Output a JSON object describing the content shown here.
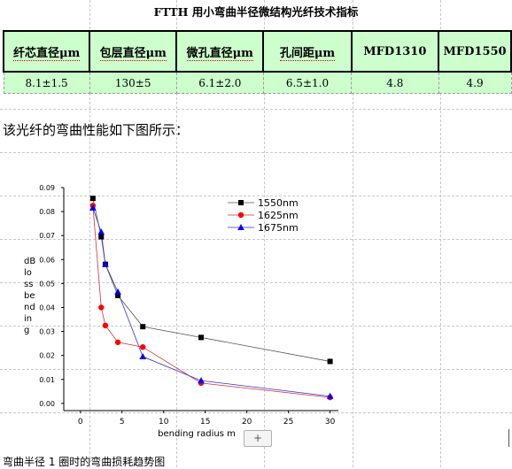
{
  "document": {
    "title": "FTTH 用小弯曲半径微结构光纤技术指标",
    "table": {
      "headers": [
        "纤芯直径μm",
        "包层直径μm",
        "微孔直径μm",
        "孔间距μm",
        "MFD1310",
        "MFD1550"
      ],
      "row": [
        "8.1±1.5",
        "130±5",
        "6.1±2.0",
        "6.5±1.0",
        "4.8",
        "4.9"
      ]
    },
    "intro_text": "该光纤的弯曲性能如下图所示：",
    "figure_caption": "弯曲半径 1 圈时的弯曲损耗趋势图",
    "add_button_label": "+"
  },
  "colors": {
    "table_fill": "#ccffcc",
    "series_1550": "#000000",
    "series_1625": "#ff0000",
    "series_1675": "#0000ff",
    "line_1550": "#555555",
    "line_1625": "#cc3333",
    "line_1675": "#3333cc"
  },
  "chart_data": {
    "type": "line",
    "xlabel": "bending radius m",
    "ylabel": "dB loss bending",
    "xlim": [
      -2,
      31
    ],
    "ylim": [
      -0.003,
      0.09
    ],
    "x_ticks": [
      0,
      5,
      10,
      15,
      20,
      25,
      30
    ],
    "y_ticks": [
      0.0,
      0.01,
      0.02,
      0.03,
      0.04,
      0.05,
      0.06,
      0.07,
      0.08,
      0.09
    ],
    "legend_position": "top-right",
    "grid": false,
    "series": [
      {
        "name": "1550nm",
        "marker": "square",
        "x": [
          1.5,
          2.5,
          3,
          4.5,
          7.5,
          14.5,
          30
        ],
        "y": [
          0.0855,
          0.0695,
          0.058,
          0.045,
          0.032,
          0.0275,
          0.0175
        ]
      },
      {
        "name": "1625nm",
        "marker": "circle",
        "x": [
          1.5,
          2.5,
          3,
          4.5,
          7.5,
          14.5,
          30
        ],
        "y": [
          0.0825,
          0.04,
          0.0325,
          0.0255,
          0.0235,
          0.0085,
          0.0025
        ]
      },
      {
        "name": "1675nm",
        "marker": "triangle",
        "x": [
          1.5,
          2.5,
          3,
          4.5,
          7.5,
          14.5,
          30
        ],
        "y": [
          0.0815,
          0.0715,
          0.058,
          0.0465,
          0.0195,
          0.0095,
          0.003
        ]
      }
    ]
  }
}
